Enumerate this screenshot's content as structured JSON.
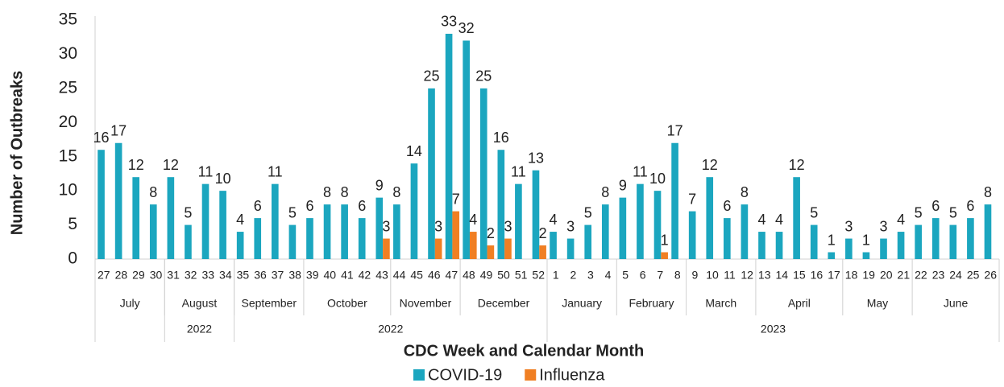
{
  "chart_data": {
    "type": "bar",
    "x_label": "CDC Week and Calendar Month",
    "y_label": "Number of Outbreaks",
    "categories": [
      27,
      28,
      29,
      30,
      31,
      32,
      33,
      34,
      35,
      36,
      37,
      38,
      39,
      40,
      41,
      42,
      43,
      44,
      45,
      46,
      47,
      48,
      49,
      50,
      51,
      52,
      1,
      2,
      3,
      4,
      5,
      6,
      7,
      8,
      9,
      10,
      11,
      12,
      13,
      14,
      15,
      16,
      17,
      18,
      19,
      20,
      21,
      22,
      23,
      24,
      25,
      26
    ],
    "months": [
      {
        "label": "July",
        "weeks": 4
      },
      {
        "label": "August",
        "weeks": 4
      },
      {
        "label": "September",
        "weeks": 4
      },
      {
        "label": "October",
        "weeks": 5
      },
      {
        "label": "November",
        "weeks": 4
      },
      {
        "label": "December",
        "weeks": 5
      },
      {
        "label": "January",
        "weeks": 4
      },
      {
        "label": "February",
        "weeks": 4
      },
      {
        "label": "March",
        "weeks": 4
      },
      {
        "label": "April",
        "weeks": 5
      },
      {
        "label": "May",
        "weeks": 4
      },
      {
        "label": "June",
        "weeks": 5
      }
    ],
    "years": [
      {
        "label": null,
        "months": 1
      },
      {
        "label": "2022",
        "months": 1
      },
      {
        "label": "2022",
        "months": 4
      },
      {
        "label": "2023",
        "months": 6
      }
    ],
    "series": [
      {
        "name": "COVID-19",
        "color": "#1ba6bf",
        "values": [
          16,
          17,
          12,
          8,
          12,
          5,
          11,
          10,
          4,
          6,
          11,
          5,
          6,
          8,
          8,
          6,
          9,
          8,
          14,
          25,
          33,
          32,
          25,
          16,
          11,
          13,
          4,
          3,
          5,
          8,
          9,
          11,
          10,
          17,
          7,
          12,
          6,
          8,
          4,
          4,
          12,
          5,
          1,
          3,
          1,
          3,
          4,
          5,
          6,
          5,
          6,
          8
        ]
      },
      {
        "name": "Influenza",
        "color": "#f07f23",
        "values": [
          null,
          null,
          null,
          null,
          null,
          null,
          null,
          null,
          null,
          null,
          null,
          null,
          null,
          null,
          null,
          null,
          3,
          null,
          null,
          3,
          7,
          4,
          2,
          3,
          null,
          2,
          null,
          null,
          null,
          null,
          null,
          null,
          1,
          null,
          null,
          null,
          null,
          null,
          null,
          null,
          null,
          null,
          null,
          null,
          null,
          null,
          null,
          null,
          null,
          null,
          null,
          null
        ]
      }
    ],
    "ylim": [
      0,
      35
    ],
    "yticks": [
      0,
      5,
      10,
      15,
      20,
      25,
      30,
      35
    ],
    "grid": false,
    "legend": "bottom"
  }
}
